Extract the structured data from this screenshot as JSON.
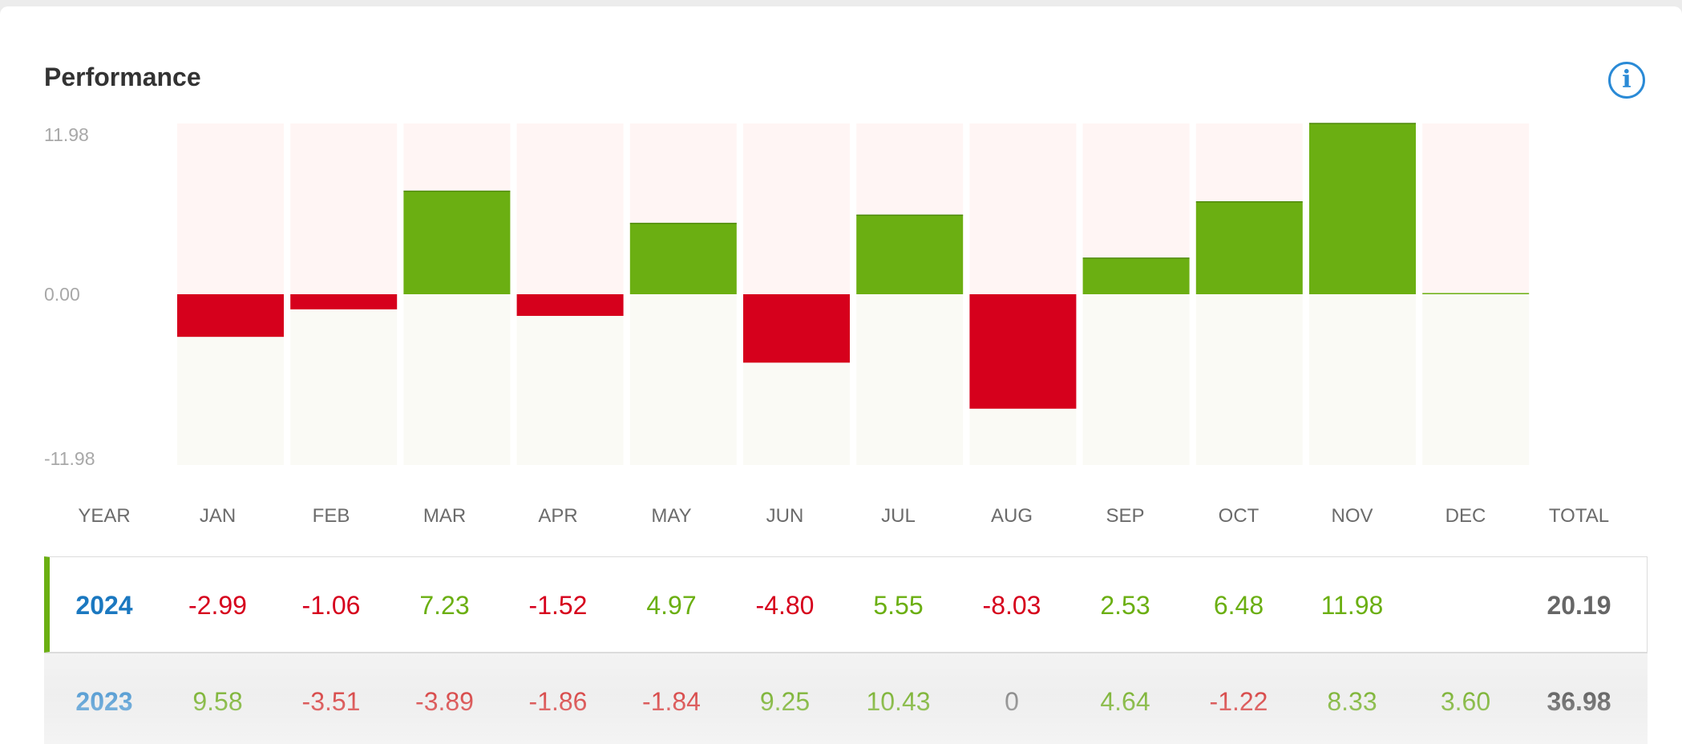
{
  "page": {
    "title": "Performance",
    "info_icon": "info-icon"
  },
  "chart_data": {
    "type": "bar",
    "title": "Performance",
    "categories": [
      "JAN",
      "FEB",
      "MAR",
      "APR",
      "MAY",
      "JUN",
      "JUL",
      "AUG",
      "SEP",
      "OCT",
      "NOV",
      "DEC"
    ],
    "series": [
      {
        "name": "2024",
        "values": [
          -2.99,
          -1.06,
          7.23,
          -1.52,
          4.97,
          -4.8,
          5.55,
          -8.03,
          2.53,
          6.48,
          11.98,
          0
        ]
      }
    ],
    "yticks": [
      "11.98",
      "0.00",
      "-11.98"
    ],
    "ylim": [
      -11.98,
      11.98
    ],
    "colors": {
      "positive": "#6baf12",
      "negative": "#d6001c",
      "bg_top": "#fff5f4",
      "bg_bottom": "#fafaf5"
    }
  },
  "table": {
    "headers": [
      "YEAR",
      "JAN",
      "FEB",
      "MAR",
      "APR",
      "MAY",
      "JUN",
      "JUL",
      "AUG",
      "SEP",
      "OCT",
      "NOV",
      "DEC",
      "TOTAL"
    ],
    "rows": [
      {
        "year": "2024",
        "values": [
          "-2.99",
          "-1.06",
          "7.23",
          "-1.52",
          "4.97",
          "-4.80",
          "5.55",
          "-8.03",
          "2.53",
          "6.48",
          "11.98",
          ""
        ],
        "total": "20.19"
      },
      {
        "year": "2023",
        "values": [
          "9.58",
          "-3.51",
          "-3.89",
          "-1.86",
          "-1.84",
          "9.25",
          "10.43",
          "0",
          "4.64",
          "-1.22",
          "8.33",
          "3.60"
        ],
        "total": "36.98"
      }
    ]
  }
}
